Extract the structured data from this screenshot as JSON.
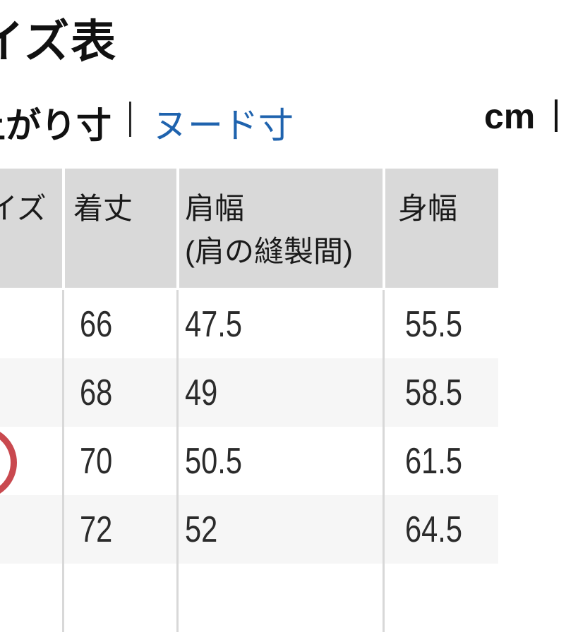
{
  "header": {
    "title": "サイズ表"
  },
  "toolbar": {
    "finished_tab_label": "仕上がり寸",
    "nude_tab_label": "ヌード寸",
    "unit_label": "cm"
  },
  "size_table": {
    "columns": [
      {
        "label": "サイズ"
      },
      {
        "label": "着丈"
      },
      {
        "label": "肩幅",
        "sub": "(肩の縫製間)"
      },
      {
        "label": "身幅"
      }
    ],
    "rows": [
      {
        "size": "",
        "values": [
          "66",
          "47.5",
          "55.5"
        ],
        "annotated": false
      },
      {
        "size": "",
        "values": [
          "68",
          "49",
          "58.5"
        ],
        "annotated": false
      },
      {
        "size": "",
        "values": [
          "70",
          "50.5",
          "61.5"
        ],
        "annotated": true
      },
      {
        "size": "",
        "values": [
          "72",
          "52",
          "64.5"
        ],
        "annotated": false
      },
      {
        "size": "",
        "values": [
          "",
          "",
          ""
        ],
        "annotated": false
      }
    ]
  },
  "annotation": {
    "shape": "red-circle",
    "color": "#c9494f"
  },
  "colors": {
    "link_blue": "#1f63ae",
    "header_bg": "#d9d9d9",
    "alt_row_bg": "#f6f6f6",
    "grid_line": "#d8d8d8",
    "annotation_red": "#c9494f"
  }
}
